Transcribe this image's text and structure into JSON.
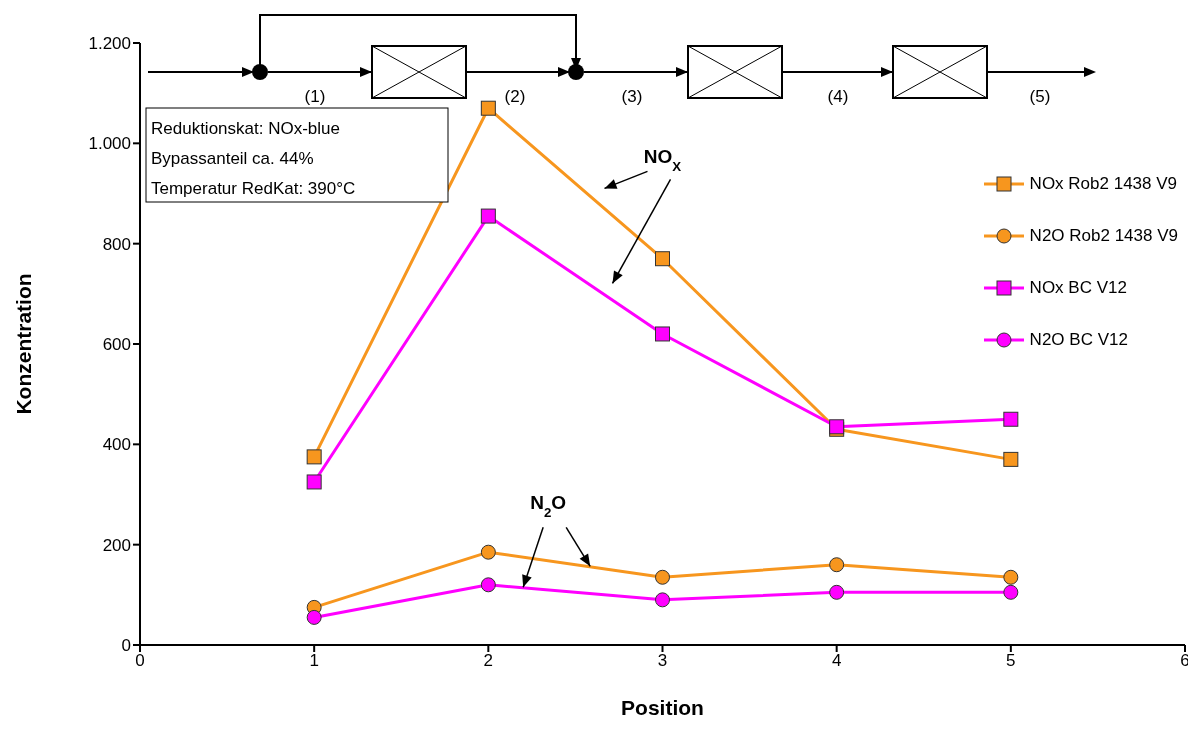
{
  "chart_data": {
    "type": "line",
    "xlabel": "Position",
    "ylabel": "Konzentration",
    "x": [
      1,
      2,
      3,
      4,
      5
    ],
    "series": [
      {
        "name": "NOx Rob2 1438 V9",
        "color": "#f7961e",
        "marker": "square",
        "values": [
          375,
          1070,
          770,
          430,
          370
        ]
      },
      {
        "name": "N2O Rob2 1438 V9",
        "color": "#f7961e",
        "marker": "circle",
        "values": [
          75,
          185,
          135,
          160,
          135
        ]
      },
      {
        "name": "NOx BC V12",
        "color": "#ff00ff",
        "marker": "square",
        "values": [
          325,
          855,
          620,
          435,
          450
        ]
      },
      {
        "name": "N2O BC V12",
        "color": "#ff00ff",
        "marker": "circle",
        "values": [
          55,
          120,
          90,
          105,
          105
        ]
      }
    ],
    "xlim": [
      0,
      6
    ],
    "xticks": [
      0,
      1,
      2,
      3,
      4,
      5,
      6
    ],
    "ylim": [
      0,
      1200
    ],
    "yticks": [
      0,
      200,
      400,
      600,
      800,
      {
        "value": 1000,
        "label": "1.000"
      },
      {
        "value": 1200,
        "label": "1.200"
      }
    ],
    "grid": false,
    "legend": "right",
    "line_style": "solid",
    "annotations": [
      "(1)",
      "(2)",
      "(3)",
      "(4)",
      "(5)",
      "Reduktionskat: NOx-blue",
      "Bypassanteil ca. 44%",
      "Temperatur RedKat: 390°C",
      "NO$_{X}$",
      {
        "text": "N$_{2}$O",
        "x": 2.2,
        "y": 115
      }
    ]
  }
}
